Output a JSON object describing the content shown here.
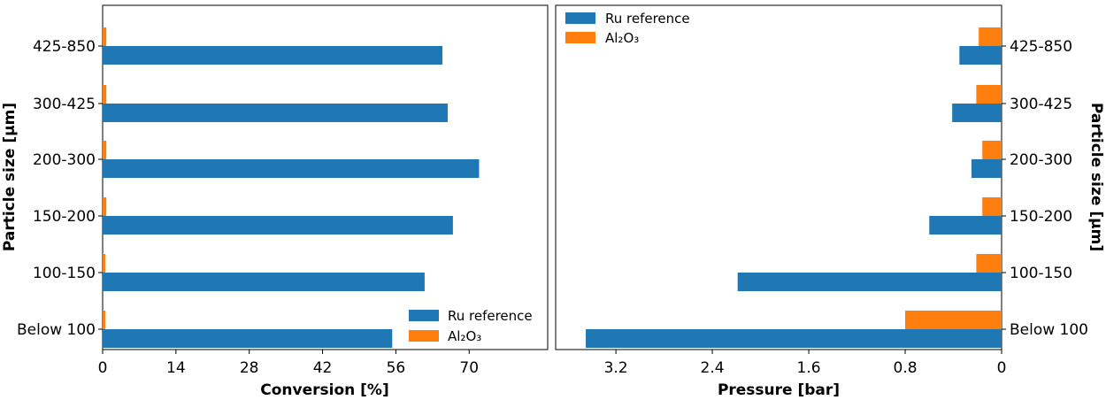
{
  "colors": {
    "series1": "#1f77b4",
    "series2": "#ff7f0e"
  },
  "chart_data": [
    {
      "type": "bar",
      "orientation": "horizontal",
      "categories": [
        "Below 100",
        "100-150",
        "150-200",
        "200-300",
        "300-425",
        "425-850"
      ],
      "series": [
        {
          "name": "Ru reference",
          "values": [
            55.3,
            61.5,
            66.9,
            71.9,
            65.9,
            64.9
          ]
        },
        {
          "name": "Al₂O₃",
          "values": [
            0.5,
            0.5,
            0.7,
            0.7,
            0.7,
            0.7
          ]
        }
      ],
      "xlabel": "Conversion [%]",
      "ylabel": "Particle size [μm]",
      "xlim": [
        0,
        85
      ],
      "xticks": [
        "0",
        "14",
        "28",
        "42",
        "56",
        "70"
      ],
      "legend": {
        "position": "bottom-right",
        "labels": [
          "Ru reference",
          "Al₂O₃"
        ]
      }
    },
    {
      "type": "bar",
      "orientation": "horizontal",
      "inverted_x": true,
      "categories": [
        "Below 100",
        "100-150",
        "150-200",
        "200-300",
        "300-425",
        "425-850"
      ],
      "series": [
        {
          "name": "Ru reference",
          "values": [
            3.45,
            2.19,
            0.6,
            0.25,
            0.41,
            0.35
          ]
        },
        {
          "name": "Al₂O₃",
          "values": [
            0.8,
            0.21,
            0.16,
            0.16,
            0.21,
            0.19
          ]
        }
      ],
      "xlabel": "Pressure [bar]",
      "ylabel": "Particle size [μm]",
      "xlim": [
        3.7,
        0
      ],
      "xticks": [
        "3.2",
        "2.4",
        "1.6",
        "0.8",
        "0"
      ],
      "legend": {
        "position": "top-left",
        "labels": [
          "Ru reference",
          "Al₂O₃"
        ]
      }
    }
  ]
}
